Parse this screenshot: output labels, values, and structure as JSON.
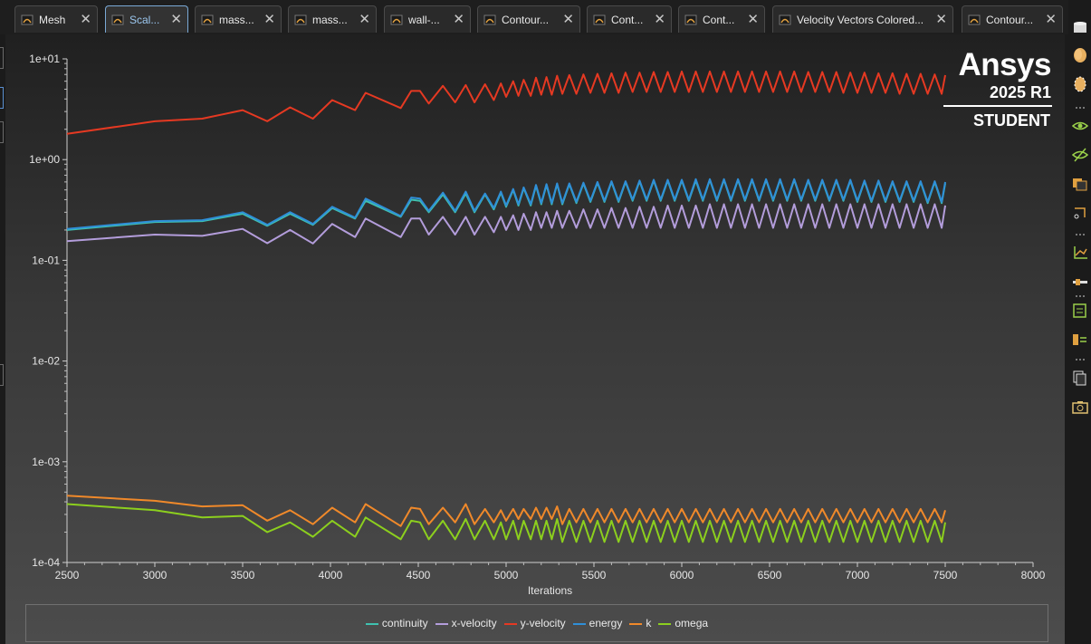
{
  "tabs": [
    {
      "label": "Mesh",
      "active": false
    },
    {
      "label": "Scal...",
      "active": true
    },
    {
      "label": "mass...",
      "active": false
    },
    {
      "label": "mass...",
      "active": false
    },
    {
      "label": "wall-...",
      "active": false
    },
    {
      "label": "Contour...",
      "active": false
    },
    {
      "label": "Cont...",
      "active": false
    },
    {
      "label": "Cont...",
      "active": false
    },
    {
      "label": "Velocity Vectors Colored...",
      "active": false
    },
    {
      "label": "Contour...",
      "active": false
    }
  ],
  "close_symbol": "✕",
  "logo": {
    "brand": "Ansys",
    "version": "2025 R1",
    "edition": "STUDENT"
  },
  "right_toolbar": [
    "cylinder-icon",
    "sphere-icon",
    "ellipse-icon",
    "eye-icon",
    "eye-hidden-icon",
    "copy-layers-icon",
    "rotate-view-icon",
    "axes-icon",
    "slider-icon",
    "notes-icon",
    "split-view-icon",
    "duplicate-icon",
    "camera-icon"
  ],
  "chart_data": {
    "type": "line",
    "title": "",
    "xlabel": "Iterations",
    "ylabel": "",
    "yscale": "log",
    "xlim": [
      2500,
      8000
    ],
    "ylim": [
      0.0001,
      10
    ],
    "xticks": [
      "2500",
      "3000",
      "3500",
      "4000",
      "4500",
      "5000",
      "5500",
      "6000",
      "6500",
      "7000",
      "7500",
      "8000"
    ],
    "yticks": [
      "1e-04",
      "1e-03",
      "1e-02",
      "1e-01",
      "1e+00",
      "1e+01"
    ],
    "grid": "off",
    "legend_position": "bottom",
    "series": [
      {
        "name": "continuity",
        "color": "#3fc1b0",
        "x": [
          2500,
          3000,
          3270,
          3500,
          3640,
          3770,
          3900,
          4010,
          4140,
          4200,
          4400,
          4460,
          4510,
          4560,
          4640,
          4710,
          4770,
          4820,
          4880,
          4930,
          4970,
          5000,
          5040,
          5070,
          5100,
          5140,
          5170,
          5200,
          5230,
          5260,
          5290,
          5320,
          5360,
          5400,
          5440,
          5480,
          5520,
          5560,
          5600,
          5640,
          5680,
          5720,
          5760,
          5800,
          5840,
          5880,
          5920,
          5960,
          6000,
          6040,
          6080,
          6120,
          6160,
          6200,
          6240,
          6280,
          6320,
          6360,
          6400,
          6440,
          6480,
          6520,
          6560,
          6600,
          6640,
          6680,
          6720,
          6760,
          6800,
          6840,
          6880,
          6920,
          6960,
          7000,
          7040,
          7080,
          7120,
          7160,
          7200,
          7240,
          7280,
          7320,
          7360,
          7400,
          7440,
          7480,
          7500
        ],
        "values": [
          0.2,
          0.24,
          0.245,
          0.29,
          0.22,
          0.29,
          0.225,
          0.33,
          0.26,
          0.39,
          0.27,
          0.4,
          0.39,
          0.3,
          0.45,
          0.3,
          0.46,
          0.3,
          0.45,
          0.32,
          0.47,
          0.34,
          0.5,
          0.35,
          0.52,
          0.35,
          0.55,
          0.36,
          0.56,
          0.36,
          0.57,
          0.36,
          0.57,
          0.37,
          0.58,
          0.38,
          0.59,
          0.38,
          0.6,
          0.38,
          0.6,
          0.39,
          0.61,
          0.39,
          0.62,
          0.39,
          0.62,
          0.39,
          0.62,
          0.39,
          0.62,
          0.39,
          0.63,
          0.39,
          0.63,
          0.39,
          0.63,
          0.39,
          0.63,
          0.39,
          0.63,
          0.39,
          0.63,
          0.39,
          0.63,
          0.39,
          0.62,
          0.39,
          0.62,
          0.39,
          0.62,
          0.39,
          0.62,
          0.38,
          0.61,
          0.38,
          0.61,
          0.38,
          0.6,
          0.38,
          0.6,
          0.38,
          0.6,
          0.37,
          0.6,
          0.37,
          0.58
        ]
      },
      {
        "name": "x-velocity",
        "color": "#b39ddb",
        "x": [
          2500,
          3000,
          3270,
          3500,
          3640,
          3770,
          3900,
          4010,
          4140,
          4200,
          4400,
          4460,
          4510,
          4560,
          4640,
          4710,
          4770,
          4820,
          4880,
          4930,
          4970,
          5000,
          5040,
          5070,
          5100,
          5140,
          5170,
          5200,
          5230,
          5260,
          5290,
          5320,
          5360,
          5400,
          5440,
          5480,
          5520,
          5560,
          5600,
          5640,
          5680,
          5720,
          5760,
          5800,
          5840,
          5880,
          5920,
          5960,
          6000,
          6040,
          6080,
          6120,
          6160,
          6200,
          6240,
          6280,
          6320,
          6360,
          6400,
          6440,
          6480,
          6520,
          6560,
          6600,
          6640,
          6680,
          6720,
          6760,
          6800,
          6840,
          6880,
          6920,
          6960,
          7000,
          7040,
          7080,
          7120,
          7160,
          7200,
          7240,
          7280,
          7320,
          7360,
          7400,
          7440,
          7480,
          7500
        ],
        "values": [
          0.155,
          0.18,
          0.175,
          0.205,
          0.148,
          0.2,
          0.147,
          0.23,
          0.17,
          0.26,
          0.17,
          0.26,
          0.26,
          0.18,
          0.27,
          0.18,
          0.27,
          0.18,
          0.27,
          0.19,
          0.27,
          0.2,
          0.28,
          0.2,
          0.29,
          0.2,
          0.3,
          0.21,
          0.3,
          0.21,
          0.31,
          0.21,
          0.31,
          0.21,
          0.32,
          0.21,
          0.32,
          0.21,
          0.33,
          0.21,
          0.33,
          0.21,
          0.34,
          0.21,
          0.34,
          0.21,
          0.35,
          0.21,
          0.35,
          0.21,
          0.35,
          0.21,
          0.36,
          0.21,
          0.36,
          0.21,
          0.36,
          0.21,
          0.36,
          0.21,
          0.36,
          0.21,
          0.36,
          0.21,
          0.36,
          0.21,
          0.36,
          0.21,
          0.36,
          0.21,
          0.36,
          0.21,
          0.36,
          0.21,
          0.36,
          0.21,
          0.36,
          0.21,
          0.36,
          0.21,
          0.36,
          0.21,
          0.36,
          0.21,
          0.36,
          0.21,
          0.35
        ]
      },
      {
        "name": "y-velocity",
        "color": "#e53922",
        "x": [
          2500,
          3000,
          3270,
          3500,
          3640,
          3770,
          3900,
          4010,
          4140,
          4200,
          4400,
          4460,
          4510,
          4560,
          4640,
          4710,
          4770,
          4820,
          4880,
          4930,
          4970,
          5000,
          5040,
          5070,
          5100,
          5140,
          5170,
          5200,
          5230,
          5260,
          5290,
          5320,
          5360,
          5400,
          5440,
          5480,
          5520,
          5560,
          5600,
          5640,
          5680,
          5720,
          5760,
          5800,
          5840,
          5880,
          5920,
          5960,
          6000,
          6040,
          6080,
          6120,
          6160,
          6200,
          6240,
          6280,
          6320,
          6360,
          6400,
          6440,
          6480,
          6520,
          6560,
          6600,
          6640,
          6680,
          6720,
          6760,
          6800,
          6840,
          6880,
          6920,
          6960,
          7000,
          7040,
          7080,
          7120,
          7160,
          7200,
          7240,
          7280,
          7320,
          7360,
          7400,
          7440,
          7480,
          7500
        ],
        "values": [
          1.8,
          2.4,
          2.55,
          3.1,
          2.4,
          3.3,
          2.55,
          3.9,
          3.1,
          4.6,
          3.25,
          4.8,
          4.8,
          3.6,
          5.4,
          3.7,
          5.5,
          3.7,
          5.6,
          3.9,
          5.7,
          4.2,
          6.0,
          4.3,
          6.2,
          4.3,
          6.5,
          4.4,
          6.6,
          4.4,
          6.8,
          4.5,
          6.9,
          4.5,
          7.0,
          4.6,
          7.1,
          4.6,
          7.2,
          4.6,
          7.3,
          4.7,
          7.3,
          4.7,
          7.4,
          4.7,
          7.4,
          4.7,
          7.5,
          4.7,
          7.5,
          4.7,
          7.5,
          4.7,
          7.5,
          4.7,
          7.5,
          4.7,
          7.5,
          4.7,
          7.5,
          4.7,
          7.5,
          4.7,
          7.5,
          4.7,
          7.4,
          4.7,
          7.4,
          4.7,
          7.4,
          4.6,
          7.3,
          4.6,
          7.3,
          4.6,
          7.2,
          4.6,
          7.2,
          4.5,
          7.1,
          4.5,
          7.1,
          4.5,
          7.0,
          4.5,
          6.9
        ]
      },
      {
        "name": "energy",
        "color": "#2f8fd8",
        "x": [
          2500,
          3000,
          3270,
          3500,
          3640,
          3770,
          3900,
          4010,
          4140,
          4200,
          4400,
          4460,
          4510,
          4560,
          4640,
          4710,
          4770,
          4820,
          4880,
          4930,
          4970,
          5000,
          5040,
          5070,
          5100,
          5140,
          5170,
          5200,
          5230,
          5260,
          5290,
          5320,
          5360,
          5400,
          5440,
          5480,
          5520,
          5560,
          5600,
          5640,
          5680,
          5720,
          5760,
          5800,
          5840,
          5880,
          5920,
          5960,
          6000,
          6040,
          6080,
          6120,
          6160,
          6200,
          6240,
          6280,
          6320,
          6360,
          6400,
          6440,
          6480,
          6520,
          6560,
          6600,
          6640,
          6680,
          6720,
          6760,
          6800,
          6840,
          6880,
          6920,
          6960,
          7000,
          7040,
          7080,
          7120,
          7160,
          7200,
          7240,
          7280,
          7320,
          7360,
          7400,
          7440,
          7480,
          7500
        ],
        "values": [
          0.205,
          0.245,
          0.25,
          0.3,
          0.225,
          0.3,
          0.23,
          0.34,
          0.265,
          0.41,
          0.275,
          0.42,
          0.41,
          0.31,
          0.47,
          0.31,
          0.48,
          0.31,
          0.46,
          0.33,
          0.48,
          0.35,
          0.51,
          0.36,
          0.53,
          0.36,
          0.56,
          0.37,
          0.57,
          0.37,
          0.58,
          0.37,
          0.58,
          0.38,
          0.59,
          0.39,
          0.6,
          0.39,
          0.61,
          0.39,
          0.61,
          0.4,
          0.62,
          0.4,
          0.63,
          0.4,
          0.63,
          0.4,
          0.63,
          0.4,
          0.64,
          0.4,
          0.64,
          0.4,
          0.64,
          0.4,
          0.64,
          0.4,
          0.64,
          0.4,
          0.64,
          0.4,
          0.64,
          0.4,
          0.64,
          0.4,
          0.63,
          0.4,
          0.63,
          0.4,
          0.63,
          0.4,
          0.63,
          0.39,
          0.62,
          0.39,
          0.62,
          0.39,
          0.61,
          0.39,
          0.61,
          0.39,
          0.61,
          0.38,
          0.61,
          0.38,
          0.6
        ]
      },
      {
        "name": "k",
        "color": "#f0892a",
        "x": [
          2500,
          3000,
          3270,
          3500,
          3640,
          3770,
          3900,
          4010,
          4140,
          4200,
          4400,
          4460,
          4510,
          4560,
          4640,
          4710,
          4770,
          4820,
          4880,
          4930,
          4970,
          5000,
          5040,
          5070,
          5100,
          5140,
          5170,
          5200,
          5230,
          5260,
          5290,
          5320,
          5360,
          5400,
          5440,
          5480,
          5520,
          5560,
          5600,
          5640,
          5680,
          5720,
          5760,
          5800,
          5840,
          5880,
          5920,
          5960,
          6000,
          6040,
          6080,
          6120,
          6160,
          6200,
          6240,
          6280,
          6320,
          6360,
          6400,
          6440,
          6480,
          6520,
          6560,
          6600,
          6640,
          6680,
          6720,
          6760,
          6800,
          6840,
          6880,
          6920,
          6960,
          7000,
          7040,
          7080,
          7120,
          7160,
          7200,
          7240,
          7280,
          7320,
          7360,
          7400,
          7440,
          7480,
          7500
        ],
        "values": [
          0.00046,
          0.00041,
          0.00036,
          0.00037,
          0.00026,
          0.00033,
          0.00024,
          0.00035,
          0.00025,
          0.00038,
          0.00023,
          0.00035,
          0.00034,
          0.00024,
          0.00035,
          0.00025,
          0.00038,
          0.00024,
          0.00034,
          0.00025,
          0.00033,
          0.00026,
          0.00034,
          0.00027,
          0.00034,
          0.00027,
          0.00035,
          0.00027,
          0.00035,
          0.00027,
          0.00036,
          0.00024,
          0.00034,
          0.00025,
          0.00034,
          0.00025,
          0.00034,
          0.00025,
          0.00034,
          0.00025,
          0.00034,
          0.00025,
          0.00034,
          0.00025,
          0.00034,
          0.00025,
          0.00034,
          0.00025,
          0.00034,
          0.00025,
          0.00034,
          0.00025,
          0.00034,
          0.00025,
          0.00034,
          0.00025,
          0.00034,
          0.00025,
          0.00034,
          0.00025,
          0.00034,
          0.00025,
          0.00034,
          0.00025,
          0.00034,
          0.00025,
          0.00034,
          0.00025,
          0.00034,
          0.00025,
          0.00034,
          0.00025,
          0.00034,
          0.00025,
          0.00034,
          0.00025,
          0.00034,
          0.00025,
          0.00034,
          0.00025,
          0.00034,
          0.00025,
          0.00034,
          0.00025,
          0.00034,
          0.00025,
          0.00033
        ]
      },
      {
        "name": "omega",
        "color": "#8ccf1e",
        "x": [
          2500,
          3000,
          3270,
          3500,
          3640,
          3770,
          3900,
          4010,
          4140,
          4200,
          4400,
          4460,
          4510,
          4560,
          4640,
          4710,
          4770,
          4820,
          4880,
          4930,
          4970,
          5000,
          5040,
          5070,
          5100,
          5140,
          5170,
          5200,
          5230,
          5260,
          5290,
          5320,
          5360,
          5400,
          5440,
          5480,
          5520,
          5560,
          5600,
          5640,
          5680,
          5720,
          5760,
          5800,
          5840,
          5880,
          5920,
          5960,
          6000,
          6040,
          6080,
          6120,
          6160,
          6200,
          6240,
          6280,
          6320,
          6360,
          6400,
          6440,
          6480,
          6520,
          6560,
          6600,
          6640,
          6680,
          6720,
          6760,
          6800,
          6840,
          6880,
          6920,
          6960,
          7000,
          7040,
          7080,
          7120,
          7160,
          7200,
          7240,
          7280,
          7320,
          7360,
          7400,
          7440,
          7480,
          7500
        ],
        "values": [
          0.00038,
          0.00033,
          0.00028,
          0.00029,
          0.0002,
          0.00025,
          0.00018,
          0.00026,
          0.00018,
          0.00028,
          0.00017,
          0.00026,
          0.00025,
          0.00017,
          0.00026,
          0.00017,
          0.00027,
          0.00017,
          0.00026,
          0.00017,
          0.00025,
          0.00017,
          0.00026,
          0.00017,
          0.00026,
          0.00017,
          0.00026,
          0.00017,
          0.00026,
          0.00017,
          0.00027,
          0.00016,
          0.00026,
          0.00016,
          0.00026,
          0.00016,
          0.00026,
          0.00016,
          0.00026,
          0.00016,
          0.00026,
          0.00016,
          0.00026,
          0.00016,
          0.00026,
          0.00016,
          0.00026,
          0.00016,
          0.00026,
          0.00016,
          0.00026,
          0.00016,
          0.00026,
          0.00016,
          0.00026,
          0.00016,
          0.00026,
          0.00016,
          0.00026,
          0.00016,
          0.00026,
          0.00016,
          0.00026,
          0.00016,
          0.00026,
          0.00016,
          0.00026,
          0.00016,
          0.00026,
          0.00016,
          0.00026,
          0.00016,
          0.00026,
          0.00016,
          0.00026,
          0.00016,
          0.00026,
          0.00016,
          0.00026,
          0.00016,
          0.00026,
          0.00016,
          0.00026,
          0.00016,
          0.00026,
          0.00016,
          0.00025
        ]
      }
    ]
  }
}
